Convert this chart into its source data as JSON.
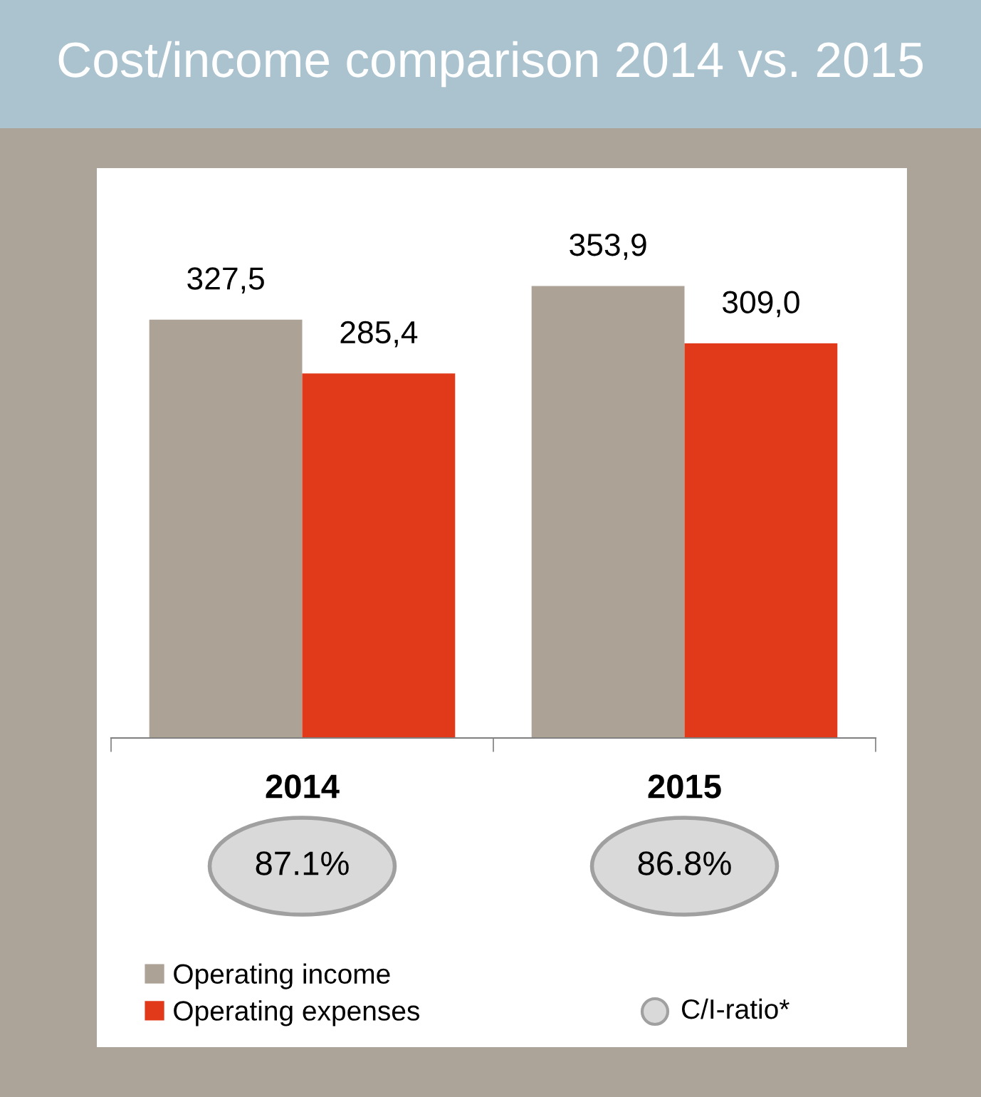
{
  "chart_data": {
    "type": "bar",
    "title": "Cost/income comparison 2014 vs. 2015",
    "categories": [
      "2014",
      "2015"
    ],
    "series": [
      {
        "name": "Operating income",
        "color": "#aca296",
        "values": [
          327.5,
          353.9
        ],
        "value_labels": [
          "327,5",
          "353,9"
        ]
      },
      {
        "name": "Operating expenses",
        "color": "#e03a1a",
        "values": [
          285.4,
          309.0
        ],
        "value_labels": [
          "285,4",
          "309,0"
        ]
      }
    ],
    "legend": "bottom left",
    "annotations": [
      "87.1%",
      "86.8%",
      "C/I-ratio*"
    ]
  }
}
